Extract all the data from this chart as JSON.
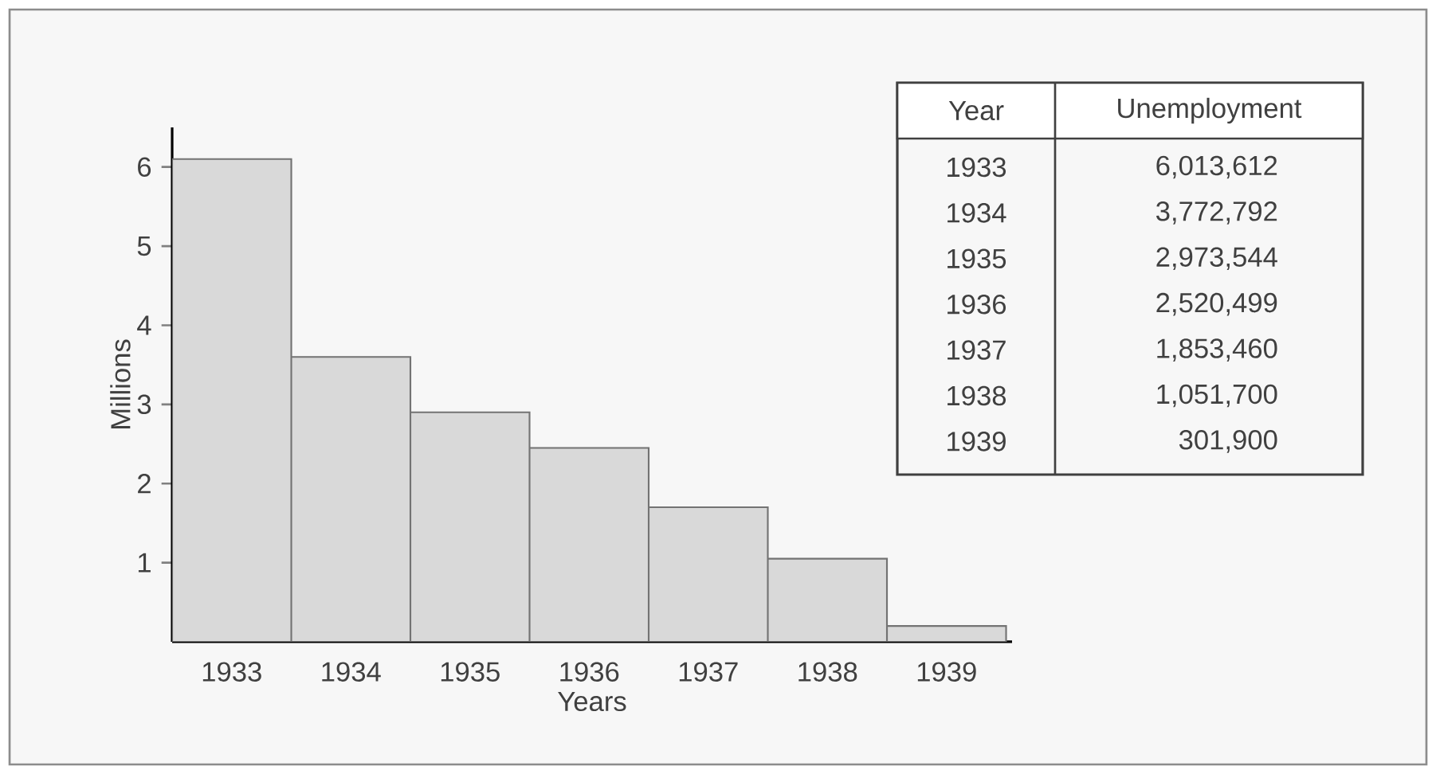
{
  "chart_data": {
    "type": "bar",
    "xlabel": "Years",
    "ylabel": "Millions",
    "categories": [
      "1933",
      "1934",
      "1935",
      "1936",
      "1937",
      "1938",
      "1939"
    ],
    "values": [
      6.1,
      3.6,
      2.9,
      2.45,
      1.7,
      1.05,
      0.2
    ],
    "color": "#d9d9d9",
    "ylim": [
      0,
      6.5
    ],
    "yticks": [
      1,
      2,
      3,
      4,
      5,
      6
    ],
    "grid": false,
    "annotations": [
      "Year",
      "Unemployment",
      "6,013,612",
      "3,772,792",
      "2,973,544",
      "2,520,499",
      "1,853,460",
      "1,051,700",
      "301,900"
    ]
  }
}
